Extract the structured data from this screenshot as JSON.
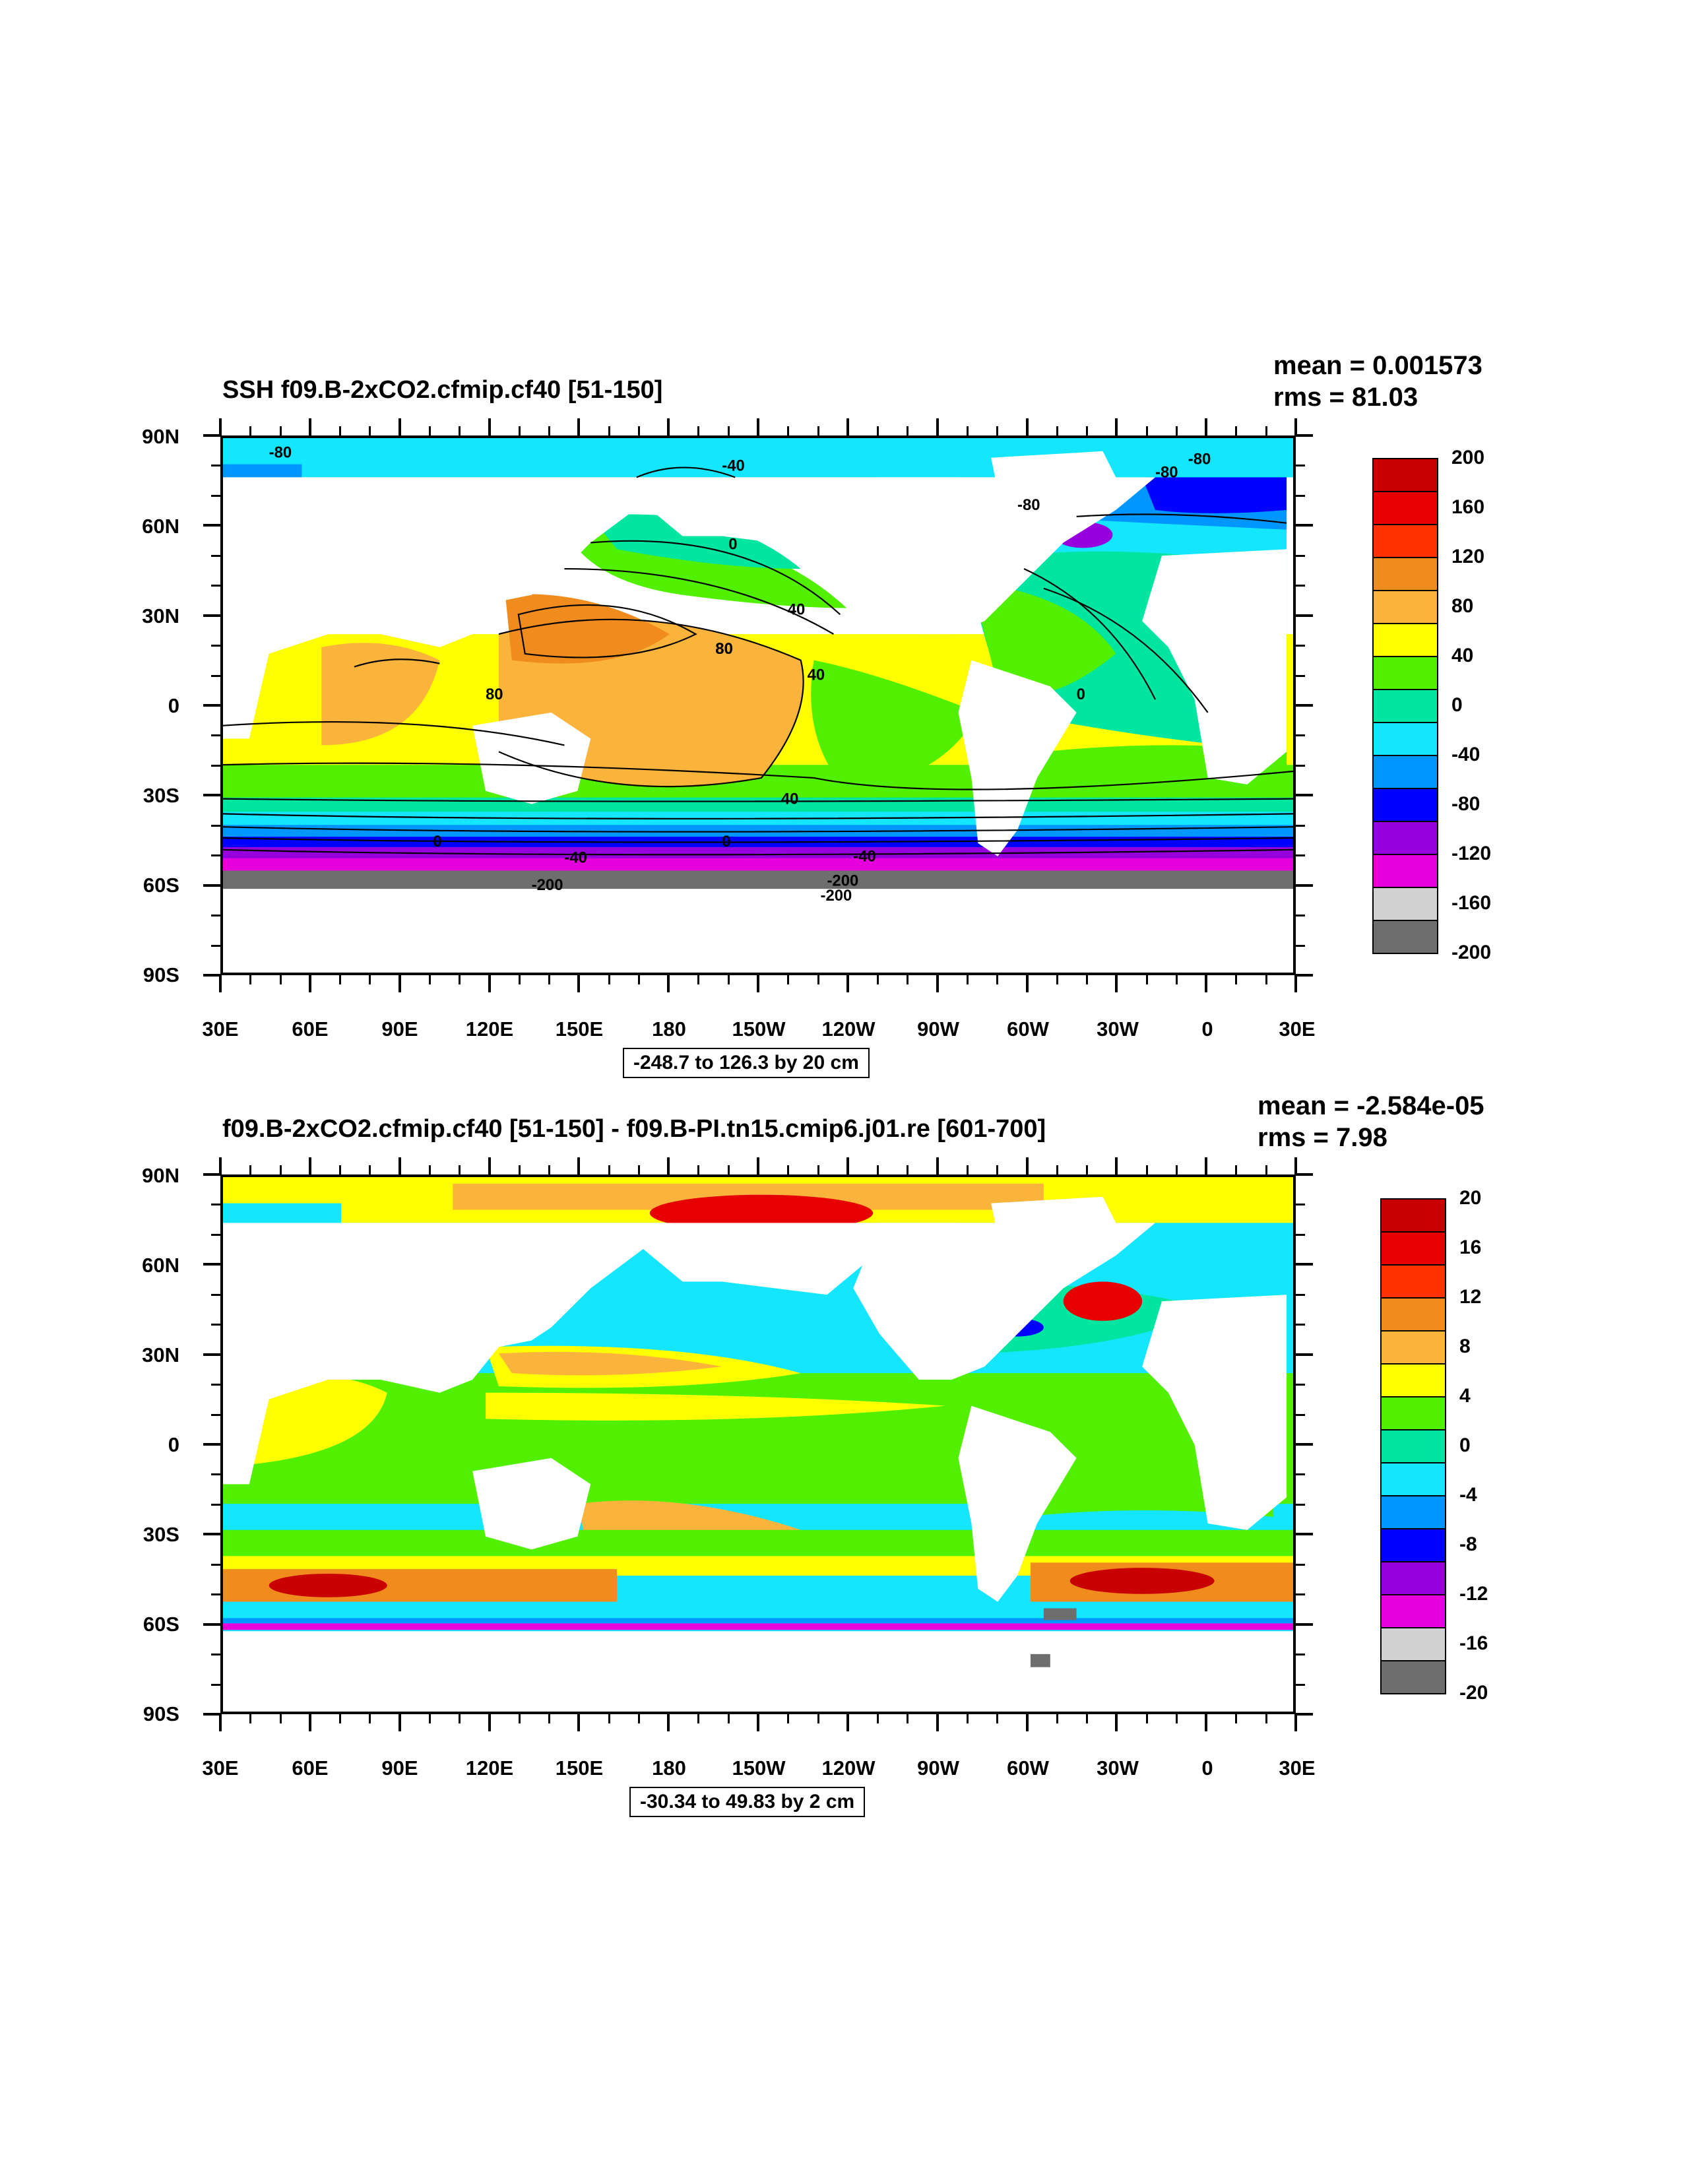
{
  "panels": [
    {
      "title": "SSH f09.B-2xCO2.cfmip.cf40 [51-150]",
      "mean": "mean = 0.001573",
      "rms": "rms = 81.03",
      "range_text": "-248.7 to 126.3 by 20 cm",
      "colorbar_labels": [
        "200",
        "160",
        "120",
        "80",
        "40",
        "0",
        "-40",
        "-80",
        "-120",
        "-160",
        "-200"
      ],
      "contour_labels": [
        "-80",
        "-40",
        "-80",
        "-80",
        "80",
        "-80",
        "0",
        "40",
        "80",
        "80",
        "40",
        "0",
        "40",
        "0",
        "0",
        "-40",
        "-40",
        "-200",
        "-200",
        "-200"
      ]
    },
    {
      "title": "f09.B-2xCO2.cfmip.cf40 [51-150] - f09.B-PI.tn15.cmip6.j01.re [601-700]",
      "mean": "mean = -2.584e-05",
      "rms": "rms = 7.98",
      "range_text": "-30.34 to 49.83 by 2 cm",
      "colorbar_labels": [
        "20",
        "16",
        "12",
        "8",
        "4",
        "0",
        "-4",
        "-8",
        "-12",
        "-16",
        "-20"
      ],
      "contour_labels": []
    }
  ],
  "axes": {
    "lat_labels": [
      "90N",
      "60N",
      "30N",
      "0",
      "30S",
      "60S",
      "90S"
    ],
    "lon_labels": [
      "30E",
      "60E",
      "90E",
      "120E",
      "150E",
      "180",
      "150W",
      "120W",
      "90W",
      "60W",
      "30W",
      "0",
      "30E"
    ]
  },
  "colors": {
    "palette": [
      "#c80000",
      "#e60000",
      "#ff3200",
      "#f08c1e",
      "#fab43c",
      "#ffff00",
      "#50f000",
      "#00e6a0",
      "#14e6ff",
      "#0096ff",
      "#0000ff",
      "#9600dc",
      "#e600dc",
      "#d2d2d2",
      "#6e6e6e"
    ],
    "colorbar": [
      "#c80000",
      "#e60000",
      "#ff3200",
      "#f08c1e",
      "#fab43c",
      "#ffff00",
      "#50f000",
      "#00e6a0",
      "#14e6ff",
      "#0096ff",
      "#0000ff",
      "#9600dc",
      "#e600dc",
      "#d2d2d2",
      "#6e6e6e"
    ]
  }
}
